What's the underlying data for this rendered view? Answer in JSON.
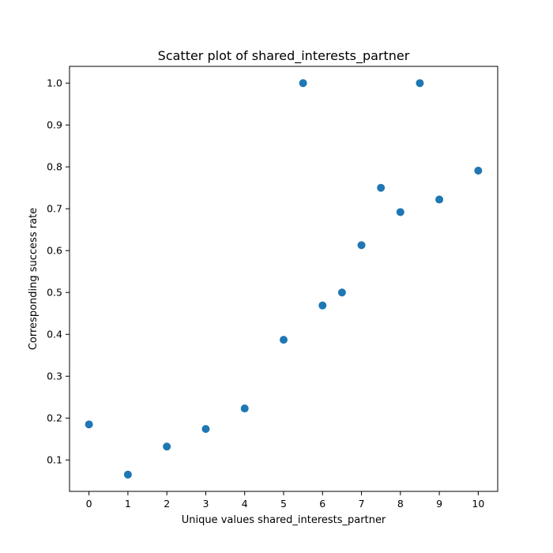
{
  "chart_data": {
    "type": "scatter",
    "title": "Scatter plot of shared_interests_partner",
    "xlabel": "Unique values shared_interests_partner",
    "ylabel": "Corresponding success rate",
    "xlim": [
      -0.5,
      10.5
    ],
    "ylim": [
      0.025,
      1.04
    ],
    "xticks": [
      0,
      1,
      2,
      3,
      4,
      5,
      6,
      7,
      8,
      9,
      10
    ],
    "xtick_labels": [
      "0",
      "1",
      "2",
      "3",
      "4",
      "5",
      "6",
      "7",
      "8",
      "9",
      "10"
    ],
    "yticks": [
      0.1,
      0.2,
      0.3,
      0.4,
      0.5,
      0.6,
      0.7,
      0.8,
      0.9,
      1.0
    ],
    "ytick_labels": [
      "0.1",
      "0.2",
      "0.3",
      "0.4",
      "0.5",
      "0.6",
      "0.7",
      "0.8",
      "0.9",
      "1.0"
    ],
    "grid": false,
    "marker_color": "#1f77b4",
    "points": [
      {
        "x": 0,
        "y": 0.185
      },
      {
        "x": 1,
        "y": 0.065
      },
      {
        "x": 2,
        "y": 0.132
      },
      {
        "x": 3,
        "y": 0.174
      },
      {
        "x": 4,
        "y": 0.223
      },
      {
        "x": 5,
        "y": 0.387
      },
      {
        "x": 5.5,
        "y": 1.0
      },
      {
        "x": 6,
        "y": 0.469
      },
      {
        "x": 6.5,
        "y": 0.5
      },
      {
        "x": 7,
        "y": 0.613
      },
      {
        "x": 7.5,
        "y": 0.75
      },
      {
        "x": 8,
        "y": 0.692
      },
      {
        "x": 8.5,
        "y": 1.0
      },
      {
        "x": 9,
        "y": 0.722
      },
      {
        "x": 10,
        "y": 0.791
      }
    ]
  }
}
